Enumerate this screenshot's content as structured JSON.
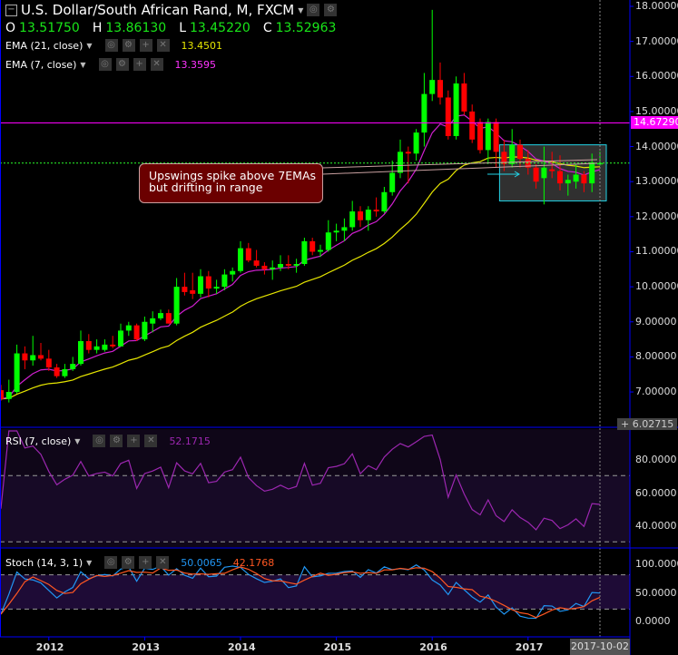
{
  "header": {
    "title": "U.S. Dollar/South African Rand, M, FXCM",
    "ohlc": {
      "o_label": "O",
      "o": "13.51750",
      "h_label": "H",
      "h": "13.86130",
      "l_label": "L",
      "l": "13.45220",
      "c_label": "C",
      "c": "13.52963"
    },
    "ema21": {
      "label": "EMA (21, close)",
      "value": "13.4501"
    },
    "ema7": {
      "label": "EMA (7, close)",
      "value": "13.3595"
    }
  },
  "rsi": {
    "label": "RSI (7, close)",
    "value": "52.1715",
    "ticks": [
      "80.0000",
      "60.0000",
      "40.0000"
    ]
  },
  "stoch": {
    "label": "Stoch (14, 3, 1)",
    "k": "50.0065",
    "d": "42.1768",
    "ticks": [
      "100.0000",
      "50.0000",
      "0.0000"
    ]
  },
  "price_axis": {
    "ticks": [
      "18.00000",
      "17.00000",
      "16.00000",
      "15.00000",
      "14.00000",
      "13.00000",
      "12.00000",
      "11.00000",
      "10.00000",
      "9.00000",
      "8.00000",
      "7.00000"
    ],
    "marker": "14.67290",
    "bottom": "6.02715"
  },
  "time_axis": {
    "ticks": [
      "2012",
      "2013",
      "2014",
      "2015",
      "2016",
      "2017"
    ],
    "cursor_date": "2017-10-02"
  },
  "annotation": {
    "line1": "Upswings spike above 7EMAs",
    "line2": "but drifting in range"
  },
  "colors": {
    "up": "#00ff00",
    "down": "#ff0000",
    "ema21": "#e6e600",
    "ema7": "#d020d0",
    "rsi": "#9c27b0",
    "k": "#2196f3",
    "d": "#ff5722",
    "axis": "#0000ff",
    "marker": "#ff00ff"
  },
  "chart_data": {
    "type": "candlestick",
    "title": "U.S. Dollar/South African Rand, M, FXCM",
    "start": "2011-07",
    "interval": "monthly",
    "ylim": [
      6.02715,
      18.2
    ],
    "horizontal_line": 14.6729,
    "range_box": {
      "from": "2016-10",
      "to": "2017-10",
      "low": 12.45,
      "high": 14.05
    },
    "ohlc": [
      [
        7.05,
        7.2,
        6.75,
        6.8
      ],
      [
        6.8,
        7.35,
        6.7,
        7.0
      ],
      [
        7.0,
        8.35,
        6.95,
        8.1
      ],
      [
        8.1,
        8.3,
        7.65,
        7.9
      ],
      [
        7.9,
        8.6,
        7.75,
        8.05
      ],
      [
        8.05,
        8.4,
        7.9,
        7.95
      ],
      [
        7.95,
        8.2,
        7.6,
        7.7
      ],
      [
        7.7,
        7.8,
        7.4,
        7.45
      ],
      [
        7.45,
        7.8,
        7.4,
        7.65
      ],
      [
        7.65,
        8.0,
        7.6,
        7.8
      ],
      [
        7.8,
        8.75,
        7.75,
        8.45
      ],
      [
        8.45,
        8.65,
        8.1,
        8.2
      ],
      [
        8.2,
        8.5,
        8.1,
        8.3
      ],
      [
        8.2,
        8.5,
        8.15,
        8.35
      ],
      [
        8.35,
        8.6,
        8.25,
        8.3
      ],
      [
        8.3,
        8.95,
        8.3,
        8.75
      ],
      [
        8.75,
        9.0,
        8.6,
        8.9
      ],
      [
        8.9,
        8.95,
        8.45,
        8.5
      ],
      [
        8.5,
        9.15,
        8.45,
        9.0
      ],
      [
        8.95,
        9.3,
        8.7,
        9.1
      ],
      [
        9.1,
        9.35,
        9.05,
        9.25
      ],
      [
        9.25,
        9.35,
        8.95,
        8.95
      ],
      [
        8.95,
        10.25,
        8.9,
        10.0
      ],
      [
        10.0,
        10.4,
        9.75,
        9.85
      ],
      [
        9.9,
        10.4,
        9.65,
        9.8
      ],
      [
        9.8,
        10.5,
        9.7,
        10.3
      ],
      [
        10.3,
        10.45,
        9.7,
        9.95
      ],
      [
        9.95,
        10.2,
        9.8,
        10.0
      ],
      [
        10.0,
        10.5,
        9.9,
        10.35
      ],
      [
        10.35,
        10.55,
        10.15,
        10.45
      ],
      [
        10.45,
        11.3,
        10.4,
        11.1
      ],
      [
        11.1,
        11.25,
        10.7,
        10.75
      ],
      [
        10.75,
        11.05,
        10.55,
        10.6
      ],
      [
        10.6,
        10.7,
        10.35,
        10.5
      ],
      [
        10.5,
        10.75,
        10.2,
        10.55
      ],
      [
        10.55,
        10.9,
        10.45,
        10.65
      ],
      [
        10.65,
        10.9,
        10.5,
        10.6
      ],
      [
        10.6,
        10.8,
        10.4,
        10.65
      ],
      [
        10.65,
        11.4,
        10.6,
        11.3
      ],
      [
        11.3,
        11.4,
        10.9,
        11.0
      ],
      [
        11.0,
        11.2,
        10.85,
        11.05
      ],
      [
        11.05,
        11.9,
        11.0,
        11.55
      ],
      [
        11.55,
        11.8,
        11.3,
        11.6
      ],
      [
        11.6,
        11.95,
        11.3,
        11.7
      ],
      [
        11.7,
        12.45,
        11.6,
        12.15
      ],
      [
        12.15,
        12.3,
        11.7,
        11.9
      ],
      [
        11.9,
        12.3,
        11.6,
        12.2
      ],
      [
        12.2,
        12.55,
        12.0,
        12.15
      ],
      [
        12.15,
        12.85,
        12.1,
        12.7
      ],
      [
        12.7,
        13.6,
        12.6,
        13.25
      ],
      [
        13.25,
        14.2,
        13.1,
        13.85
      ],
      [
        13.85,
        14.0,
        12.95,
        13.8
      ],
      [
        13.8,
        14.5,
        13.6,
        14.4
      ],
      [
        14.4,
        16.1,
        14.0,
        15.5
      ],
      [
        15.5,
        17.9,
        15.3,
        15.9
      ],
      [
        15.9,
        16.4,
        15.2,
        15.4
      ],
      [
        15.4,
        15.6,
        14.2,
        14.3
      ],
      [
        14.3,
        16.0,
        14.2,
        15.8
      ],
      [
        15.8,
        16.1,
        14.9,
        15.0
      ],
      [
        15.0,
        15.2,
        14.1,
        14.2
      ],
      [
        14.7,
        14.8,
        13.8,
        13.9
      ],
      [
        13.9,
        14.8,
        13.5,
        14.7
      ],
      [
        14.7,
        14.8,
        13.4,
        13.85
      ],
      [
        13.85,
        14.2,
        13.3,
        13.5
      ],
      [
        13.5,
        14.5,
        13.4,
        14.05
      ],
      [
        14.05,
        14.2,
        13.4,
        13.65
      ],
      [
        13.65,
        13.9,
        13.2,
        13.4
      ],
      [
        13.4,
        13.5,
        12.8,
        13.0
      ],
      [
        13.1,
        14.0,
        12.35,
        13.4
      ],
      [
        13.35,
        13.85,
        13.1,
        13.3
      ],
      [
        13.3,
        13.75,
        12.75,
        12.95
      ],
      [
        12.95,
        13.2,
        12.6,
        13.05
      ],
      [
        13.0,
        13.5,
        12.8,
        13.2
      ],
      [
        13.2,
        13.3,
        12.7,
        12.95
      ],
      [
        12.95,
        13.8,
        12.7,
        13.55
      ],
      [
        13.5175,
        13.8613,
        13.4522,
        13.52963
      ]
    ],
    "indicators": [
      "EMA 21",
      "EMA 7",
      "RSI 7",
      "Stoch 14,3,1"
    ]
  }
}
